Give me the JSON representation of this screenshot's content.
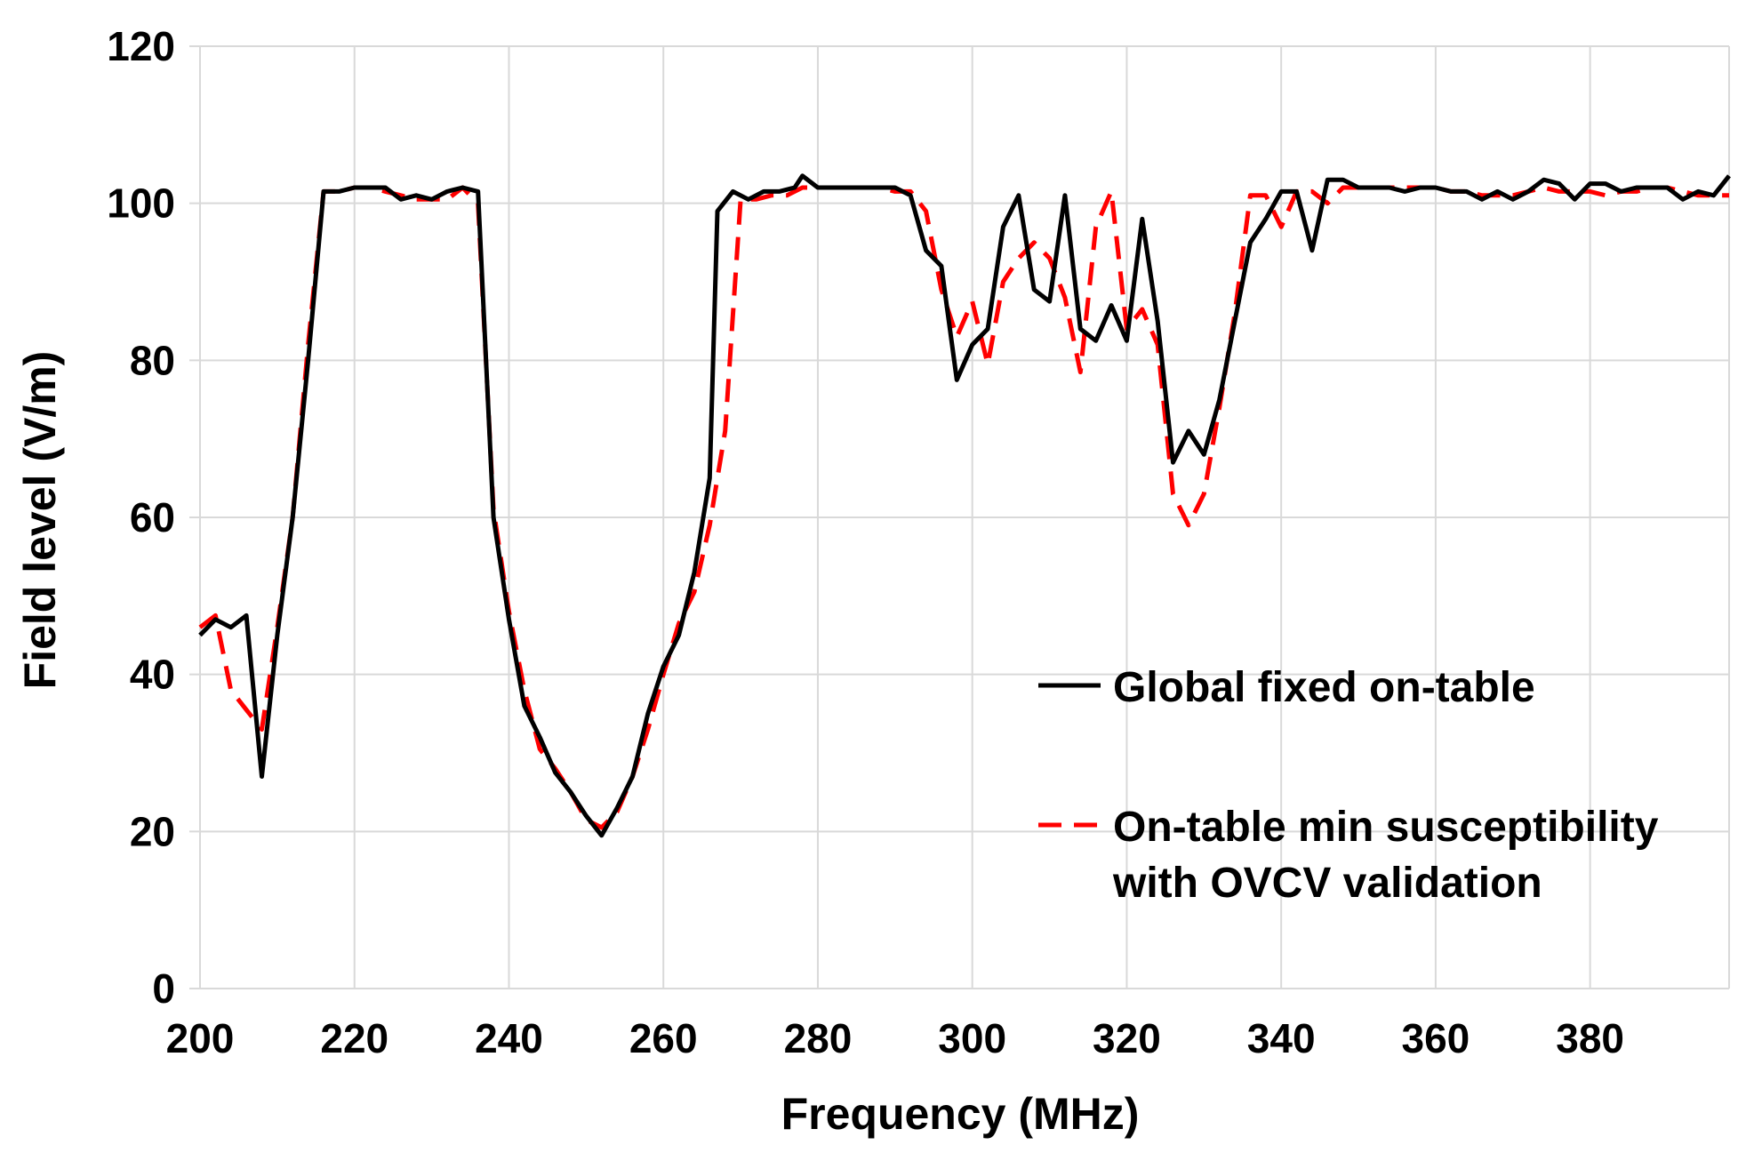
{
  "chart_data": {
    "type": "line",
    "title": "",
    "xlabel": "Frequency (MHz)",
    "ylabel": "Field level (V/m)",
    "xlim": [
      200,
      398
    ],
    "ylim": [
      0,
      120
    ],
    "grid": true,
    "x_ticks": [
      200,
      220,
      240,
      260,
      280,
      300,
      320,
      340,
      360,
      380
    ],
    "y_ticks": [
      0,
      20,
      40,
      60,
      80,
      100,
      120
    ],
    "x_tick_labels": [
      "200",
      "220",
      "240",
      "260",
      "280",
      "300",
      "320",
      "340",
      "360",
      "380"
    ],
    "y_tick_labels": [
      "0",
      "20",
      "40",
      "60",
      "80",
      "100",
      "120"
    ],
    "legend_position": "right",
    "series": [
      {
        "name": "Global fixed on-table",
        "legend_lines": [
          "Global fixed on-table"
        ],
        "color": "#000000",
        "style": "solid",
        "points": [
          [
            200,
            45
          ],
          [
            202,
            47
          ],
          [
            204,
            46
          ],
          [
            206,
            47.5
          ],
          [
            208,
            27
          ],
          [
            210,
            45
          ],
          [
            212,
            60
          ],
          [
            214,
            80
          ],
          [
            216,
            101.5
          ],
          [
            218,
            101.5
          ],
          [
            220,
            102
          ],
          [
            222,
            102
          ],
          [
            224,
            102
          ],
          [
            226,
            100.5
          ],
          [
            228,
            101
          ],
          [
            230,
            100.5
          ],
          [
            232,
            101.5
          ],
          [
            234,
            102
          ],
          [
            236,
            101.5
          ],
          [
            238,
            60
          ],
          [
            240,
            47
          ],
          [
            242,
            36
          ],
          [
            244,
            32
          ],
          [
            246,
            27.5
          ],
          [
            248,
            25
          ],
          [
            250,
            22
          ],
          [
            252,
            19.5
          ],
          [
            254,
            23
          ],
          [
            256,
            27
          ],
          [
            258,
            35
          ],
          [
            260,
            41
          ],
          [
            262,
            45
          ],
          [
            264,
            53
          ],
          [
            266,
            65
          ],
          [
            267,
            99
          ],
          [
            269,
            101.5
          ],
          [
            271,
            100.5
          ],
          [
            273,
            101.5
          ],
          [
            275,
            101.5
          ],
          [
            277,
            102
          ],
          [
            278,
            103.5
          ],
          [
            280,
            102
          ],
          [
            282,
            102
          ],
          [
            284,
            102
          ],
          [
            286,
            102
          ],
          [
            288,
            102
          ],
          [
            290,
            102
          ],
          [
            292,
            101
          ],
          [
            294,
            94
          ],
          [
            296,
            92
          ],
          [
            298,
            77.5
          ],
          [
            300,
            82
          ],
          [
            302,
            84
          ],
          [
            304,
            97
          ],
          [
            306,
            101
          ],
          [
            308,
            89
          ],
          [
            310,
            87.5
          ],
          [
            312,
            101
          ],
          [
            314,
            84
          ],
          [
            316,
            82.5
          ],
          [
            318,
            87
          ],
          [
            320,
            82.5
          ],
          [
            322,
            98
          ],
          [
            324,
            85
          ],
          [
            326,
            67
          ],
          [
            328,
            71
          ],
          [
            330,
            68
          ],
          [
            332,
            75
          ],
          [
            334,
            85
          ],
          [
            336,
            95
          ],
          [
            338,
            98
          ],
          [
            340,
            101.5
          ],
          [
            342,
            101.5
          ],
          [
            344,
            94
          ],
          [
            346,
            103
          ],
          [
            348,
            103
          ],
          [
            350,
            102
          ],
          [
            352,
            102
          ],
          [
            354,
            102
          ],
          [
            356,
            101.5
          ],
          [
            358,
            102
          ],
          [
            360,
            102
          ],
          [
            362,
            101.5
          ],
          [
            364,
            101.5
          ],
          [
            366,
            100.5
          ],
          [
            368,
            101.5
          ],
          [
            370,
            100.5
          ],
          [
            372,
            101.5
          ],
          [
            374,
            103
          ],
          [
            376,
            102.5
          ],
          [
            378,
            100.5
          ],
          [
            380,
            102.5
          ],
          [
            382,
            102.5
          ],
          [
            384,
            101.5
          ],
          [
            386,
            102
          ],
          [
            388,
            102
          ],
          [
            390,
            102
          ],
          [
            392,
            100.5
          ],
          [
            394,
            101.5
          ],
          [
            396,
            101
          ],
          [
            398,
            103.5
          ]
        ]
      },
      {
        "name": "On-table min susceptibility with OVCV validation",
        "legend_lines": [
          "On-table min susceptibility",
          "with OVCV validation"
        ],
        "color": "#ff0000",
        "style": "dashed",
        "points": [
          [
            200,
            46
          ],
          [
            202,
            47.5
          ],
          [
            204,
            38
          ],
          [
            206,
            35.5
          ],
          [
            208,
            33
          ],
          [
            210,
            46
          ],
          [
            212,
            60
          ],
          [
            214,
            82
          ],
          [
            216,
            101.5
          ],
          [
            218,
            101.5
          ],
          [
            220,
            102
          ],
          [
            222,
            102
          ],
          [
            224,
            101.5
          ],
          [
            226,
            101
          ],
          [
            228,
            100.5
          ],
          [
            230,
            100.5
          ],
          [
            232,
            100.5
          ],
          [
            234,
            102
          ],
          [
            236,
            100
          ],
          [
            238,
            61
          ],
          [
            240,
            48
          ],
          [
            242,
            38
          ],
          [
            244,
            30.5
          ],
          [
            246,
            28
          ],
          [
            248,
            25
          ],
          [
            250,
            21.5
          ],
          [
            252,
            20.5
          ],
          [
            254,
            22.5
          ],
          [
            256,
            27
          ],
          [
            258,
            33
          ],
          [
            260,
            40
          ],
          [
            262,
            46.5
          ],
          [
            264,
            50.5
          ],
          [
            266,
            59
          ],
          [
            268,
            71
          ],
          [
            270,
            100.5
          ],
          [
            272,
            100.5
          ],
          [
            274,
            101
          ],
          [
            276,
            101
          ],
          [
            278,
            102
          ],
          [
            280,
            102
          ],
          [
            282,
            102
          ],
          [
            284,
            102
          ],
          [
            286,
            102
          ],
          [
            288,
            102
          ],
          [
            290,
            101.5
          ],
          [
            292,
            101.5
          ],
          [
            294,
            99
          ],
          [
            296,
            89
          ],
          [
            298,
            83
          ],
          [
            300,
            87.5
          ],
          [
            302,
            79.5
          ],
          [
            304,
            90
          ],
          [
            306,
            93
          ],
          [
            308,
            95
          ],
          [
            310,
            93
          ],
          [
            312,
            88
          ],
          [
            314,
            78.5
          ],
          [
            316,
            97
          ],
          [
            318,
            101.5
          ],
          [
            320,
            84
          ],
          [
            322,
            86.5
          ],
          [
            324,
            82
          ],
          [
            326,
            63
          ],
          [
            328,
            59
          ],
          [
            330,
            63
          ],
          [
            332,
            74
          ],
          [
            334,
            86
          ],
          [
            336,
            101
          ],
          [
            338,
            101
          ],
          [
            340,
            97
          ],
          [
            342,
            101.5
          ],
          [
            344,
            101.5
          ],
          [
            346,
            100
          ],
          [
            348,
            102
          ],
          [
            350,
            102
          ],
          [
            352,
            102
          ],
          [
            354,
            102
          ],
          [
            356,
            102
          ],
          [
            358,
            102
          ],
          [
            360,
            102
          ],
          [
            362,
            101.5
          ],
          [
            364,
            101.5
          ],
          [
            366,
            101
          ],
          [
            368,
            101
          ],
          [
            370,
            101
          ],
          [
            372,
            101.5
          ],
          [
            374,
            102
          ],
          [
            376,
            101.5
          ],
          [
            378,
            101.5
          ],
          [
            380,
            101.5
          ],
          [
            382,
            101
          ],
          [
            384,
            101.5
          ],
          [
            386,
            101.5
          ],
          [
            388,
            102
          ],
          [
            390,
            102
          ],
          [
            392,
            101.5
          ],
          [
            394,
            101
          ],
          [
            396,
            101
          ],
          [
            398,
            101
          ]
        ]
      }
    ]
  }
}
